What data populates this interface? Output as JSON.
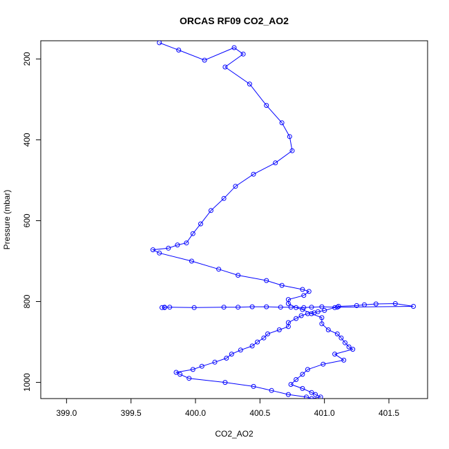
{
  "chart_data": {
    "type": "line",
    "title": "ORCAS RF09 CO2_AO2",
    "xlabel": "CO2_AO2",
    "ylabel": "Pressure (mbar)",
    "xlim": [
      398.8,
      401.8
    ],
    "ylim": [
      1040,
      155
    ],
    "y_reversed": true,
    "grid": false,
    "legend": "none",
    "x_ticks": [
      "399.0",
      "399.5",
      "400.0",
      "400.5",
      "401.0",
      "401.5"
    ],
    "x_tick_values": [
      399.0,
      399.5,
      400.0,
      400.5,
      401.0,
      401.5
    ],
    "y_ticks": [
      "200",
      "400",
      "600",
      "800",
      "1000"
    ],
    "y_tick_values": [
      200,
      400,
      600,
      800,
      1000
    ],
    "series": [
      {
        "color": "#0000ff",
        "marker": "open-circle",
        "x": [
          399.72,
          399.87,
          400.07,
          400.3,
          400.37,
          400.23,
          400.42,
          400.55,
          400.67,
          400.73,
          400.75,
          400.62,
          400.45,
          400.31,
          400.22,
          400.12,
          400.04,
          399.98,
          399.93,
          399.86,
          399.79,
          399.67,
          399.72,
          399.97,
          400.18,
          400.33,
          400.55,
          400.67,
          400.83,
          400.88,
          400.84,
          400.72,
          400.72,
          400.78,
          400.83,
          400.9,
          400.98,
          400.98,
          401.03,
          401.1,
          401.13,
          401.16,
          401.19,
          401.22,
          401.08,
          401.15,
          400.99,
          400.87,
          400.83,
          400.78,
          400.74,
          400.83,
          400.9,
          400.93,
          400.97,
          400.9,
          400.86,
          400.72,
          400.59,
          400.45,
          400.23,
          399.95,
          399.88,
          399.85,
          399.98,
          400.05,
          400.15,
          400.24,
          400.28,
          400.35,
          400.44,
          400.48,
          400.53,
          400.56,
          400.65,
          400.72,
          400.72,
          400.78,
          400.82,
          400.87,
          400.92,
          400.95,
          401.0,
          401.08,
          401.11,
          401.25,
          401.31,
          401.4,
          401.55,
          401.69,
          401.1,
          400.98,
          400.9,
          400.84,
          400.74,
          400.66,
          400.55,
          400.44,
          400.33,
          400.22,
          399.99,
          399.8,
          399.76,
          399.76,
          399.74
        ],
        "y": [
          160,
          178,
          203,
          172,
          188,
          220,
          262,
          315,
          358,
          392,
          427,
          457,
          485,
          515,
          545,
          575,
          608,
          632,
          655,
          660,
          668,
          672,
          680,
          700,
          720,
          735,
          748,
          760,
          770,
          775,
          785,
          795,
          805,
          815,
          820,
          830,
          840,
          855,
          870,
          880,
          890,
          902,
          912,
          918,
          930,
          945,
          955,
          968,
          980,
          993,
          1005,
          1015,
          1025,
          1030,
          1036,
          1040,
          1036,
          1030,
          1020,
          1010,
          1000,
          990,
          980,
          975,
          968,
          960,
          950,
          940,
          930,
          920,
          910,
          900,
          890,
          880,
          870,
          862,
          852,
          842,
          835,
          830,
          828,
          825,
          822,
          815,
          812,
          810,
          808,
          806,
          805,
          812,
          814,
          813,
          814,
          815,
          814,
          814,
          813,
          813,
          814,
          814,
          815,
          814,
          814,
          815,
          815
        ]
      }
    ]
  }
}
